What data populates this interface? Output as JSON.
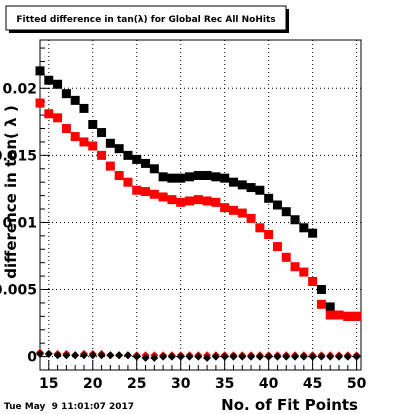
{
  "chart_data": {
    "type": "scatter",
    "title": "Fitted difference in tan(λ) for Global Rec All NoHits",
    "xlabel": "No. of Fit Points",
    "ylabel": "difference in tan( λ )",
    "xlim": [
      14,
      50.5
    ],
    "ylim": [
      -0.001,
      0.0236
    ],
    "x_ticks": [
      15,
      20,
      25,
      30,
      35,
      40,
      45,
      50
    ],
    "y_ticks": [
      0,
      0.005,
      0.01,
      0.015,
      0.02
    ],
    "y_tick_labels": [
      "0",
      "0.005",
      "0.01",
      "0.015",
      "0.02"
    ],
    "grid": true,
    "timestamp": "Tue May  9 11:01:07 2017",
    "series": [
      {
        "marker": "square",
        "color": "#000000",
        "x": [
          14,
          15,
          16,
          17,
          18,
          19,
          20,
          21,
          22,
          23,
          24,
          25,
          26,
          27,
          28,
          29,
          30,
          31,
          32,
          33,
          34,
          35,
          36,
          37,
          38,
          39,
          40,
          41,
          42,
          43,
          44,
          45,
          46,
          47,
          48,
          49,
          50
        ],
        "y": [
          0.0213,
          0.0206,
          0.0203,
          0.0196,
          0.0191,
          0.0185,
          0.0173,
          0.0167,
          0.0159,
          0.0155,
          0.015,
          0.0147,
          0.0144,
          0.014,
          0.0134,
          0.0133,
          0.0133,
          0.0134,
          0.0135,
          0.0135,
          0.0134,
          0.0133,
          0.013,
          0.0128,
          0.0126,
          0.0124,
          0.0118,
          0.0113,
          0.0108,
          0.0102,
          0.0096,
          0.0092,
          0.005,
          0.0037,
          0.0031,
          0.003,
          0.003
        ]
      },
      {
        "marker": "square",
        "color": "#ff0000",
        "x": [
          14,
          15,
          16,
          17,
          18,
          19,
          20,
          21,
          22,
          23,
          24,
          25,
          26,
          27,
          28,
          29,
          30,
          31,
          32,
          33,
          34,
          35,
          36,
          37,
          38,
          39,
          40,
          41,
          42,
          43,
          44,
          45,
          46,
          47,
          48,
          49,
          50
        ],
        "y": [
          0.0189,
          0.0181,
          0.0178,
          0.017,
          0.0164,
          0.016,
          0.0157,
          0.015,
          0.0142,
          0.0135,
          0.013,
          0.0124,
          0.0123,
          0.0121,
          0.0119,
          0.0117,
          0.0115,
          0.0116,
          0.0117,
          0.0116,
          0.0115,
          0.0111,
          0.0109,
          0.0107,
          0.0103,
          0.0096,
          0.0091,
          0.0082,
          0.0074,
          0.0067,
          0.0063,
          0.0056,
          0.0039,
          0.0031,
          0.0031,
          0.003,
          0.003
        ]
      },
      {
        "marker": "diamond",
        "color": "#ff0000",
        "x": [
          14,
          15,
          16,
          17,
          18,
          19,
          20,
          21,
          22,
          23,
          24,
          25,
          26,
          27,
          28,
          29,
          30,
          31,
          32,
          33,
          34,
          35,
          36,
          37,
          38,
          39,
          40,
          41,
          42,
          43,
          44,
          45,
          46,
          47,
          48,
          49,
          50
        ],
        "y": [
          0.0003,
          0.0002,
          0.0002,
          0.0002,
          0.0001,
          0.0002,
          0.0002,
          0.0002,
          0.0001,
          0.0001,
          0.0001,
          0.0001,
          0.0001,
          0.0001,
          0.0001,
          0.0001,
          0.0001,
          0.0001,
          0.0001,
          0.0001,
          0.0001,
          0.0001,
          0.0001,
          0.0001,
          0.0001,
          0.0001,
          0.0001,
          0.0001,
          0.0001,
          0.0001,
          0.0001,
          0.0001,
          0.0001,
          0.0001,
          0.0001,
          0.0001,
          0.0001
        ]
      },
      {
        "marker": "diamond",
        "color": "#000000",
        "x": [
          14,
          15,
          16,
          17,
          18,
          19,
          20,
          21,
          22,
          23,
          24,
          25,
          26,
          27,
          28,
          29,
          30,
          31,
          32,
          33,
          34,
          35,
          36,
          37,
          38,
          39,
          40,
          41,
          42,
          43,
          44,
          45,
          46,
          47,
          48,
          49,
          50
        ],
        "y": [
          0.0002,
          0.0002,
          0.0001,
          0.0001,
          0.0001,
          0.0001,
          0.0001,
          0.0001,
          0.0001,
          0.0001,
          0.0001,
          0.0,
          -0.0001,
          -0.0001,
          0.0,
          0.0,
          0.0,
          0.0,
          0.0,
          -0.0001,
          0.0,
          0.0,
          0.0,
          0.0,
          0.0,
          0.0,
          0.0,
          0.0,
          0.0,
          0.0,
          0.0,
          0.0,
          0.0,
          0.0,
          0.0,
          0.0,
          0.0
        ]
      }
    ]
  }
}
